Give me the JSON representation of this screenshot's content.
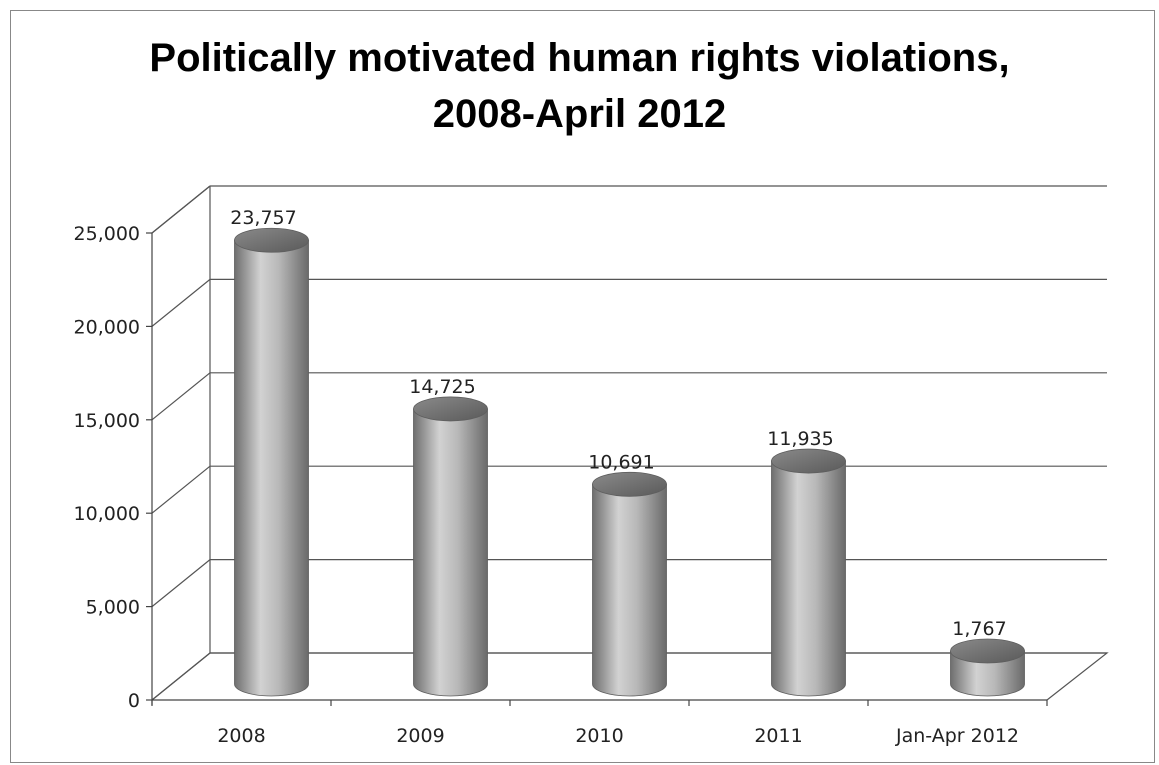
{
  "chart_data": {
    "type": "bar",
    "title_lines": [
      "Politically motivated human rights violations,",
      "2008-April 2012"
    ],
    "categories": [
      "2008",
      "2009",
      "2010",
      "2011",
      "Jan-Apr 2012"
    ],
    "values": [
      23757,
      14725,
      10691,
      11935,
      1767
    ],
    "data_labels": [
      "23,757",
      "14,725",
      "10,691",
      "11,935",
      "1,767"
    ],
    "ylim": [
      0,
      25000
    ],
    "y_ticks": [
      0,
      5000,
      10000,
      15000,
      20000,
      25000
    ],
    "y_tick_labels": [
      "0",
      "5,000",
      "10,000",
      "15,000",
      "20,000",
      "25,000"
    ],
    "grid": true,
    "style": "3d-cylinder",
    "bar_color": "#9a9a9a",
    "grid_color": "#555555"
  }
}
